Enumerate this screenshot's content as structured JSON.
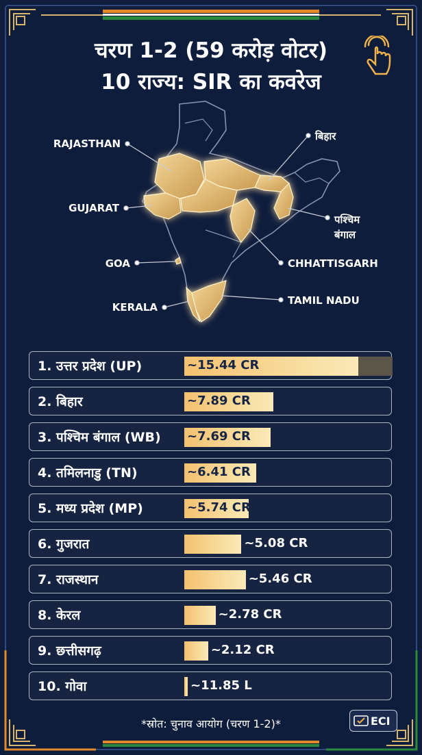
{
  "title_line1": "चरण 1-2 (59 करोड़ वोटर)",
  "title_line2": "10 राज्य: SIR का कवरेज",
  "map_labels": {
    "rajasthan": "RAJASTHAN",
    "gujarat": "GUJARAT",
    "goa": "GOA",
    "kerala": "KERALA",
    "bihar": "बिहार",
    "west_bengal_1": "पश्चिम",
    "west_bengal_2": "बंगाल",
    "chhattisgarh": "CHHATTISGARH",
    "tamil_nadu": "TAMIL NADU"
  },
  "chart_data": {
    "type": "bar",
    "orientation": "horizontal",
    "categories": [
      "1. उत्तर प्रदेश (UP)",
      "2. बिहार",
      "3. पश्चिम बंगाल (WB)",
      "4. तमिलनाडु (TN)",
      "5. मध्य प्रदेश (MP)",
      "6. गुजरात",
      "7. राजस्थान",
      "8. केरल",
      "9. छत्तीसगढ़",
      "10. गोवा"
    ],
    "values": [
      15.44,
      7.89,
      7.69,
      6.41,
      5.74,
      5.08,
      5.46,
      2.78,
      2.12,
      0.1185
    ],
    "value_labels": [
      "~15.44 CR",
      "~7.89 CR",
      "~7.69 CR",
      "~6.41 CR",
      "~5.74 CR",
      "~5.08 CR",
      "~5.46 CR",
      "~2.78 CR",
      "~2.12 CR",
      "~11.85 L"
    ],
    "xlim": [
      0,
      18.5
    ],
    "colors": {
      "bar": "#f4c070",
      "track": "#5b5648",
      "background": "#0f1d3c",
      "accent": "#e8c27a"
    }
  },
  "source_note": "*स्रोत: चुनाव आयोग (चरण 1-2)*",
  "logo_text": "ECI",
  "icons": [
    "tap-finger-icon",
    "eci-logo-icon"
  ]
}
